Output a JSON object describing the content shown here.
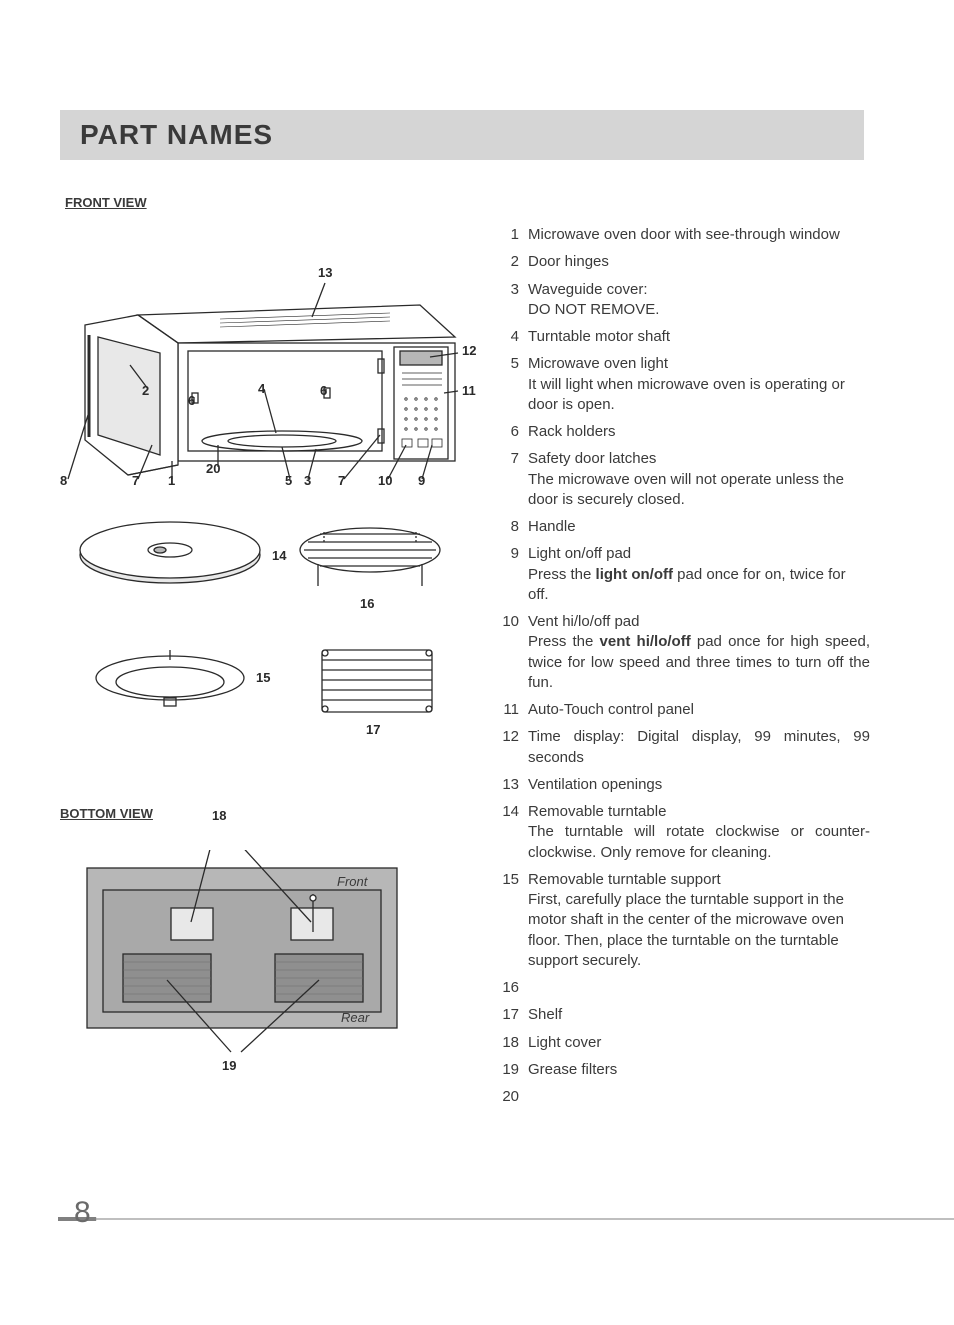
{
  "title": "PART NAMES",
  "sections": {
    "front": "FRONT VIEW",
    "bottom": "BOTTOM VIEW"
  },
  "frontCallouts": {
    "c13": "13",
    "c12": "12",
    "c11": "11",
    "c2": "2",
    "c4": "4",
    "c6a": "6",
    "c6b": "6",
    "c8": "8",
    "c7a": "7",
    "c1": "1",
    "c20": "20",
    "c5": "5",
    "c3": "3",
    "c7b": "7",
    "c10": "10",
    "c9": "9"
  },
  "accCallouts": {
    "c14": "14",
    "c16": "16",
    "c15": "15",
    "c17": "17"
  },
  "bottomCallouts": {
    "c18": "18",
    "c19": "19",
    "front": "Front",
    "rear": "Rear"
  },
  "parts": [
    {
      "n": "1",
      "title": "Microwave oven door with see-through window"
    },
    {
      "n": "2",
      "title": "Door hinges"
    },
    {
      "n": "3",
      "title": "Waveguide cover:",
      "sub": "DO NOT REMOVE."
    },
    {
      "n": "4",
      "title": "Turntable motor shaft"
    },
    {
      "n": "5",
      "title": "Microwave oven light",
      "sub": "It will light when microwave oven is operating or door is open."
    },
    {
      "n": "6",
      "title": "Rack holders"
    },
    {
      "n": "7",
      "title": "Safety door latches",
      "sub": "The microwave oven will not operate unless the door is securely closed."
    },
    {
      "n": "8",
      "title": "Handle"
    },
    {
      "n": "9",
      "title": "Light on/off pad",
      "subHtml": "Press the <b>light on/off</b> pad once for on, twice for off."
    },
    {
      "n": "10",
      "title": "Vent hi/lo/off pad",
      "subHtml": "Press the <b>vent hi/lo/off</b> pad once for high speed, twice for low speed and three times to turn off the fun.",
      "justify": true
    },
    {
      "n": "11",
      "title": "Auto-Touch control panel"
    },
    {
      "n": "12",
      "title": "Time display: Digital display, 99 minutes, 99 seconds",
      "justify": true
    },
    {
      "n": "13",
      "title": "Ventilation openings"
    },
    {
      "n": "14",
      "title": "Removable turntable",
      "sub": "The turntable will rotate clockwise or counter-clockwise. Only remove for cleaning.",
      "justify": true
    },
    {
      "n": "15",
      "title": "Removable turntable support",
      "sub": "First, carefully place the turntable support in the motor shaft in the center of the microwave oven floor. Then, place the turntable on the turntable support securely."
    },
    {
      "n": "16",
      "title": ""
    },
    {
      "n": "17",
      "title": "Shelf"
    },
    {
      "n": "18",
      "title": "Light cover"
    },
    {
      "n": "19",
      "title": "Grease filters"
    },
    {
      "n": "20",
      "title": ""
    }
  ],
  "pageNumber": "8",
  "colors": {
    "titleBg": "#d5d5d5",
    "text": "#3a3a3a",
    "diagramFill": "#b7b7b7",
    "diagramLight": "#e8e8e8",
    "diagramStroke": "#2a2a2a",
    "footerGrey": "#bfbfbf",
    "footerDark": "#808080"
  }
}
